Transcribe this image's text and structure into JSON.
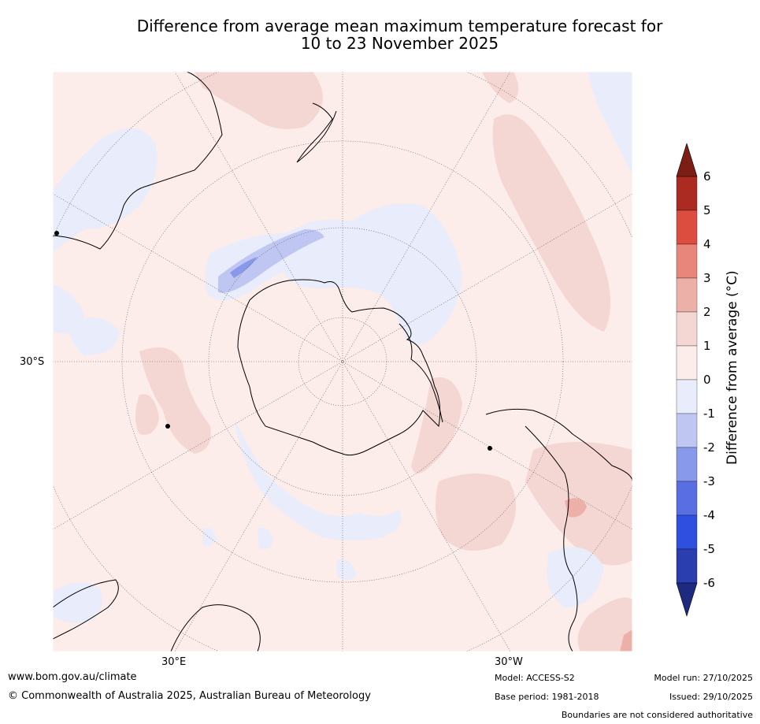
{
  "title": {
    "line1": "Difference from average mean maximum temperature forecast for",
    "line2": "10 to 23 November 2025"
  },
  "map": {
    "projection": "south polar stereographic",
    "labels": {
      "lat_left": "30°S",
      "lon_bottom_left": "30°E",
      "lon_bottom_right": "30°W"
    }
  },
  "colorbar": {
    "label": "Difference from average (°C)",
    "ticks": [
      "6",
      "5",
      "4",
      "3",
      "2",
      "1",
      "0",
      "-1",
      "-2",
      "-3",
      "-4",
      "-5",
      "-6"
    ],
    "bins": [
      {
        "range": "5 to 6",
        "color": "#ab2a22"
      },
      {
        "range": "4 to 5",
        "color": "#dc4c3f"
      },
      {
        "range": "3 to 4",
        "color": "#e8867c"
      },
      {
        "range": "2 to 3",
        "color": "#edb0a9"
      },
      {
        "range": "1 to 2",
        "color": "#f4d6d3"
      },
      {
        "range": "0 to 1",
        "color": "#fcecea"
      },
      {
        "range": "-1 to 0",
        "color": "#e8ecfb"
      },
      {
        "range": "-2 to -1",
        "color": "#c0c6f2"
      },
      {
        "range": "-3 to -2",
        "color": "#8898ea"
      },
      {
        "range": "-4 to -3",
        "color": "#5a6ee3"
      },
      {
        "range": "-5 to -4",
        "color": "#2f4fe0"
      },
      {
        "range": "-6 to -5",
        "color": "#2a3eb0"
      }
    ],
    "extend_high_color": "#7c1d16",
    "extend_low_color": "#1e2a80"
  },
  "footer": {
    "website": "www.bom.gov.au/climate",
    "copyright": "© Commonwealth of Australia 2025, Australian Bureau of Meteorology",
    "model": "Model: ACCESS-S2",
    "base_period": "Base period: 1981-2018",
    "model_run": "Model run: 27/10/2025",
    "issued": "Issued: 29/10/2025",
    "disclaimer": "Boundaries are not considered authoritative"
  }
}
